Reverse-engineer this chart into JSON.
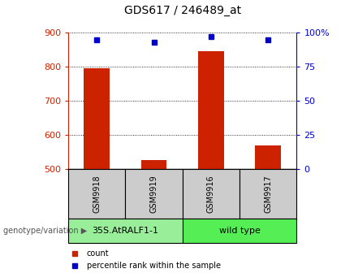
{
  "title": "GDS617 / 246489_at",
  "samples": [
    "GSM9918",
    "GSM9919",
    "GSM9916",
    "GSM9917"
  ],
  "count_values": [
    795,
    527,
    845,
    570
  ],
  "percentile_values": [
    95,
    93,
    97,
    95
  ],
  "ylim_left": [
    500,
    900
  ],
  "ylim_right": [
    0,
    100
  ],
  "yticks_left": [
    500,
    600,
    700,
    800,
    900
  ],
  "yticks_right": [
    0,
    25,
    50,
    75,
    100
  ],
  "bar_color": "#cc2200",
  "dot_color": "#0000cc",
  "group_labels": [
    "35S.AtRALF1-1",
    "wild type"
  ],
  "group_colors": [
    "#99ee99",
    "#55ee55"
  ],
  "group_ranges": [
    [
      0,
      2
    ],
    [
      2,
      4
    ]
  ],
  "legend_count_label": "count",
  "legend_pct_label": "percentile rank within the sample",
  "title_color": "#000000",
  "left_axis_color": "#cc2200",
  "right_axis_color": "#0000cc",
  "background_color": "#ffffff",
  "plot_bg_color": "#ffffff",
  "sample_box_color": "#cccccc",
  "genotype_label": "genotype/variation"
}
